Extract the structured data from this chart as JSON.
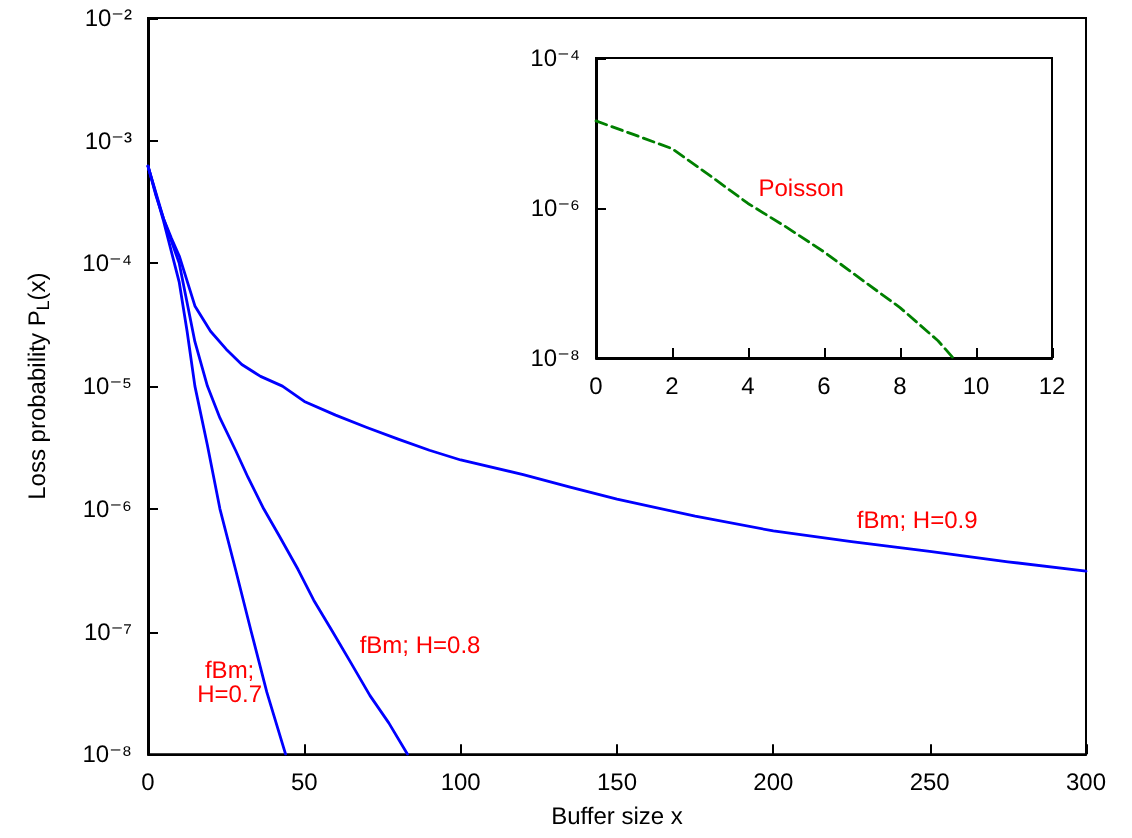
{
  "chart_data": [
    {
      "type": "line",
      "xlabel": "Buffer size x",
      "ylabel": "Loss probability P$_{L}$(x)",
      "log": "y",
      "grid": false,
      "marker": "none",
      "line_style": "solid",
      "xlim": [
        0,
        300
      ],
      "xticks": [
        0,
        50,
        100,
        150,
        200,
        250,
        300
      ],
      "ylim": [
        1e-08,
        0.01
      ],
      "yticks": [
        {
          "value": 1e-08,
          "label": "10⁻⁸"
        },
        {
          "value": 1e-07,
          "label": "10⁻⁷"
        },
        {
          "value": 1e-06,
          "label": "10⁻⁶"
        },
        {
          "value": 1e-05,
          "label": "10⁻⁵"
        },
        {
          "value": 0.0001,
          "label": "10⁻⁴"
        },
        {
          "value": 0.001,
          "label": "10⁻³"
        },
        {
          "value": 0.01,
          "label": "10⁻²"
        }
      ],
      "series": [
        {
          "color": "#0000ff",
          "x": [
            0,
            2.5,
            5,
            7.5,
            10,
            15,
            20,
            25,
            30,
            36,
            43,
            50,
            60,
            70,
            80,
            90,
            100,
            120,
            135,
            150,
            175,
            200,
            225,
            250,
            275,
            300
          ],
          "values": [
            0.00062,
            0.00036,
            0.00023,
            0.00016,
            0.000115,
            4.5e-05,
            2.8e-05,
            2e-05,
            1.5e-05,
            1.2e-05,
            1e-05,
            7.5e-06,
            5.8e-06,
            4.6e-06,
            3.7e-06,
            3e-06,
            2.5e-06,
            1.9e-06,
            1.5e-06,
            1.2e-06,
            8.7e-07,
            6.6e-07,
            5.4e-07,
            4.5e-07,
            3.7e-07,
            3.1e-07
          ]
        },
        {
          "color": "#0000ff",
          "x": [
            0,
            5,
            10,
            15,
            19,
            23,
            28,
            32,
            37,
            42,
            48,
            53,
            59,
            65,
            71,
            77,
            83
          ],
          "values": [
            0.00062,
            0.00023,
            0.0001,
            2.3e-05,
            1e-05,
            5.5e-06,
            3e-06,
            1.8e-06,
            1e-06,
            6e-07,
            3.2e-07,
            1.8e-07,
            1e-07,
            5.5e-08,
            3e-08,
            1.8e-08,
            1e-08
          ]
        },
        {
          "color": "#0000ff",
          "x": [
            0,
            5,
            10,
            12.5,
            15,
            19,
            23,
            28,
            33,
            38,
            44
          ],
          "values": [
            0.00062,
            0.00022,
            7e-05,
            2.8e-05,
            1e-05,
            3.3e-06,
            1e-06,
            3.2e-07,
            1e-07,
            3.2e-08,
            1e-08
          ]
        }
      ],
      "annotations": [
        "fBm; H=0.9",
        "fBm; H=0.8",
        "fBm;\nH=0.7"
      ]
    },
    {
      "type": "line",
      "log": "y",
      "grid": false,
      "marker": "none",
      "line_style": "dashed",
      "xlim": [
        0,
        12
      ],
      "xticks": [
        0,
        2,
        4,
        6,
        8,
        10,
        12
      ],
      "ylim": [
        1e-08,
        0.0001
      ],
      "yticks": [
        {
          "value": 1e-08,
          "label": "10⁻⁸"
        },
        {
          "value": 1e-06,
          "label": "10⁻⁶"
        },
        {
          "value": 0.0001,
          "label": "10⁻⁴"
        }
      ],
      "series": [
        {
          "color": "#008000",
          "x": [
            0,
            1,
            2,
            3,
            4,
            5,
            6,
            7,
            8,
            9,
            9.4
          ],
          "values": [
            1.45e-05,
            9.5e-06,
            6.2e-06,
            2.7e-06,
            1.15e-06,
            5.6e-07,
            2.6e-07,
            1.1e-07,
            4.7e-08,
            1.7e-08,
            1e-08
          ]
        }
      ],
      "annotations": [
        "Poisson"
      ]
    }
  ]
}
